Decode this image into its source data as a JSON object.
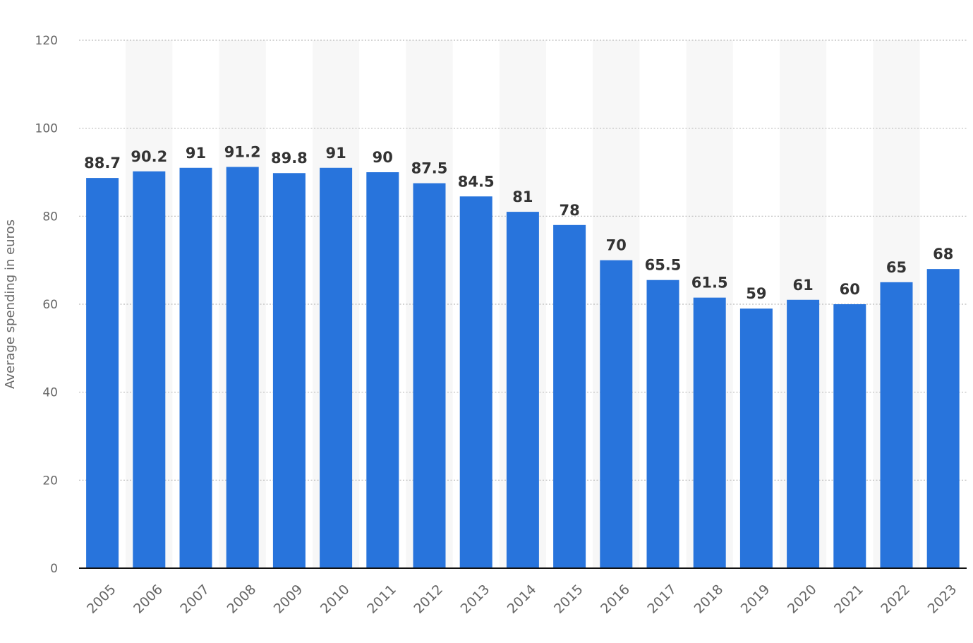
{
  "chart_data": {
    "type": "bar",
    "title": "",
    "xlabel": "",
    "ylabel": "Average spending in euros",
    "ylim": [
      0,
      120
    ],
    "y_ticks": [
      0,
      20,
      40,
      60,
      80,
      100,
      120
    ],
    "grid": true,
    "legend": "none",
    "categories": [
      "2005",
      "2006",
      "2007",
      "2008",
      "2009",
      "2010",
      "2011",
      "2012",
      "2013",
      "2014",
      "2015",
      "2016",
      "2017",
      "2018",
      "2019",
      "2020",
      "2021",
      "2022",
      "2023"
    ],
    "values": [
      88.7,
      90.2,
      91,
      91.2,
      89.8,
      91,
      90,
      87.5,
      84.5,
      81,
      78,
      70,
      65.5,
      61.5,
      59,
      61,
      60,
      65,
      68
    ],
    "data_labels": [
      "88.7",
      "90.2",
      "91",
      "91.2",
      "89.8",
      "91",
      "90",
      "87.5",
      "84.5",
      "81",
      "78",
      "70",
      "65.5",
      "61.5",
      "59",
      "61",
      "60",
      "65",
      "68"
    ],
    "colors": {
      "bar": "#2874dc",
      "grid": "#bbbbbb",
      "band": "#f7f7f7",
      "axis": "#111111"
    }
  }
}
